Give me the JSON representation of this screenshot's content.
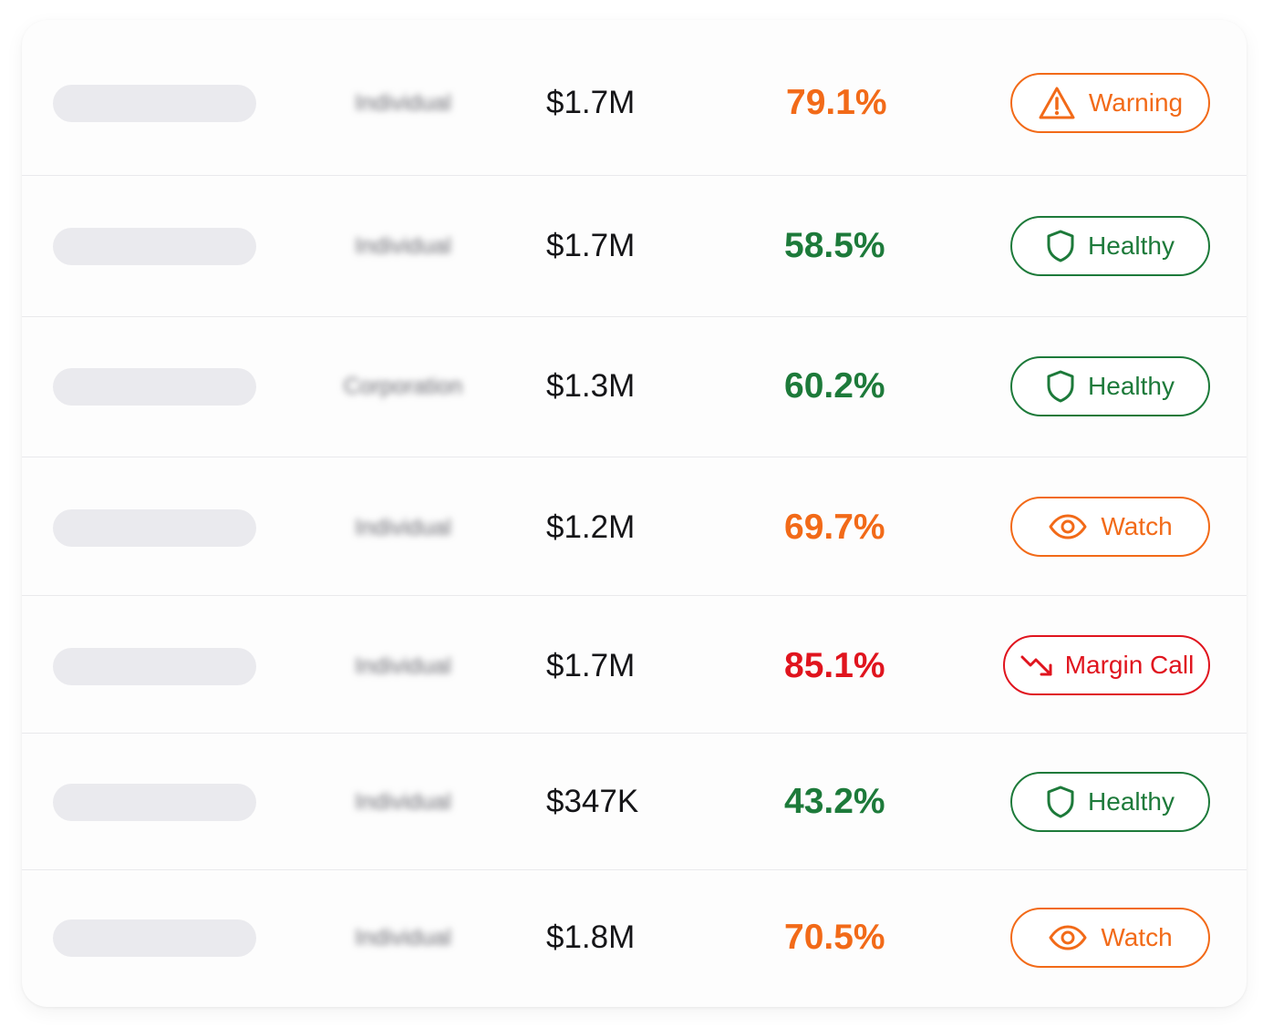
{
  "colors": {
    "warning": "#f26a18",
    "watch": "#f26a18",
    "healthy": "#1d7a3a",
    "margin_call": "#e0141e"
  },
  "rows": [
    {
      "type": "Individual",
      "value": "$1.7M",
      "pct": "79.1%",
      "status": "Warning",
      "status_icon": "warning-triangle-icon",
      "tone": "warning"
    },
    {
      "type": "Individual",
      "value": "$1.7M",
      "pct": "58.5%",
      "status": "Healthy",
      "status_icon": "shield-icon",
      "tone": "healthy"
    },
    {
      "type": "Corporation",
      "value": "$1.3M",
      "pct": "60.2%",
      "status": "Healthy",
      "status_icon": "shield-icon",
      "tone": "healthy"
    },
    {
      "type": "Individual",
      "value": "$1.2M",
      "pct": "69.7%",
      "status": "Watch",
      "status_icon": "eye-icon",
      "tone": "watch"
    },
    {
      "type": "Individual",
      "value": "$1.7M",
      "pct": "85.1%",
      "status": "Margin Call",
      "status_icon": "trending-down-icon",
      "tone": "margin_call"
    },
    {
      "type": "Individual",
      "value": "$347K",
      "pct": "43.2%",
      "status": "Healthy",
      "status_icon": "shield-icon",
      "tone": "healthy"
    },
    {
      "type": "Individual",
      "value": "$1.8M",
      "pct": "70.5%",
      "status": "Watch",
      "status_icon": "eye-icon",
      "tone": "watch"
    }
  ]
}
